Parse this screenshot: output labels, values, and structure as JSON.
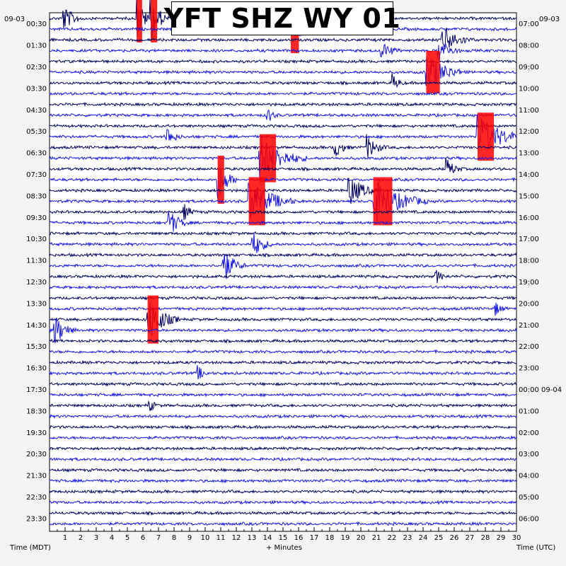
{
  "chart_data": {
    "type": "helicorder",
    "title": "YFT SHZ WY 01",
    "date_left": "09-03",
    "date_right": "09-03",
    "left_labels": [
      "00:30",
      "01:30",
      "02:30",
      "03:30",
      "04:30",
      "05:30",
      "06:30",
      "07:30",
      "08:30",
      "09:30",
      "10:30",
      "11:30",
      "12:30",
      "13:30",
      "14:30",
      "15:30",
      "16:30",
      "17:30",
      "18:30",
      "19:30",
      "20:30",
      "21:30",
      "22:30",
      "23:30"
    ],
    "right_labels": [
      "07:00",
      "08:00",
      "09:00",
      "10:00",
      "11:00",
      "12:00",
      "13:00",
      "14:00",
      "15:00",
      "16:00",
      "17:00",
      "18:00",
      "19:00",
      "20:00",
      "21:00",
      "22:00",
      "23:00",
      "00:00 09-04",
      "01:00",
      "02:00",
      "03:00",
      "04:00",
      "05:00",
      "06:00"
    ],
    "x_ticks": [
      "1",
      "2",
      "3",
      "4",
      "5",
      "6",
      "7",
      "8",
      "9",
      "10",
      "11",
      "12",
      "13",
      "14",
      "15",
      "16",
      "17",
      "18",
      "19",
      "20",
      "21",
      "22",
      "23",
      "24",
      "25",
      "26",
      "27",
      "28",
      "29",
      "30"
    ],
    "x_range": [
      0,
      30
    ],
    "x_label": "+ Minutes",
    "left_axis_label": "Time (MDT)",
    "right_axis_label": "Time (UTC)",
    "trace_count": 48,
    "trace_minutes": 30,
    "trace_colors": [
      "#000060",
      "#1414e0"
    ],
    "clip_color": "#ff0000",
    "events": [
      {
        "trace": 0,
        "minute": 0.8,
        "amp": 22,
        "dur": 1.5
      },
      {
        "trace": 0,
        "minute": 5.6,
        "amp": 34,
        "dur": 1.0,
        "clip": true
      },
      {
        "trace": 0,
        "minute": 6.5,
        "amp": 34,
        "dur": 1.2,
        "clip": true
      },
      {
        "trace": 1,
        "minute": 11.6,
        "amp": 18,
        "dur": 1.5
      },
      {
        "trace": 1,
        "minute": 15.5,
        "amp": 34,
        "dur": 1.5,
        "clip": true
      },
      {
        "trace": 2,
        "minute": 25.2,
        "amp": 24,
        "dur": 2.0
      },
      {
        "trace": 3,
        "minute": 21.3,
        "amp": 14,
        "dur": 1.5
      },
      {
        "trace": 3,
        "minute": 25.0,
        "amp": 20,
        "dur": 1.5
      },
      {
        "trace": 5,
        "minute": 24.2,
        "amp": 30,
        "dur": 2.5,
        "clip": true
      },
      {
        "trace": 6,
        "minute": 22.0,
        "amp": 14,
        "dur": 1.0
      },
      {
        "trace": 9,
        "minute": 14.0,
        "amp": 12,
        "dur": 1.0
      },
      {
        "trace": 11,
        "minute": 7.5,
        "amp": 16,
        "dur": 1.2
      },
      {
        "trace": 11,
        "minute": 27.5,
        "amp": 34,
        "dur": 3.0,
        "clip": true
      },
      {
        "trace": 12,
        "minute": 18.3,
        "amp": 16,
        "dur": 1.2
      },
      {
        "trace": 12,
        "minute": 20.4,
        "amp": 18,
        "dur": 1.5
      },
      {
        "trace": 13,
        "minute": 13.5,
        "amp": 34,
        "dur": 3.0,
        "clip": true
      },
      {
        "trace": 14,
        "minute": 25.5,
        "amp": 16,
        "dur": 1.2
      },
      {
        "trace": 15,
        "minute": 10.8,
        "amp": 34,
        "dur": 1.2,
        "clip": true
      },
      {
        "trace": 16,
        "minute": 19.2,
        "amp": 24,
        "dur": 2.0
      },
      {
        "trace": 17,
        "minute": 12.8,
        "amp": 34,
        "dur": 3.0,
        "clip": true
      },
      {
        "trace": 17,
        "minute": 20.8,
        "amp": 34,
        "dur": 3.5,
        "clip": true
      },
      {
        "trace": 18,
        "minute": 8.6,
        "amp": 14,
        "dur": 1.0
      },
      {
        "trace": 19,
        "minute": 7.6,
        "amp": 22,
        "dur": 1.5
      },
      {
        "trace": 21,
        "minute": 13.0,
        "amp": 22,
        "dur": 1.5
      },
      {
        "trace": 23,
        "minute": 11.1,
        "amp": 28,
        "dur": 1.5
      },
      {
        "trace": 24,
        "minute": 24.8,
        "amp": 12,
        "dur": 1.0
      },
      {
        "trace": 27,
        "minute": 28.6,
        "amp": 12,
        "dur": 1.0
      },
      {
        "trace": 28,
        "minute": 6.3,
        "amp": 34,
        "dur": 2.0,
        "clip": true
      },
      {
        "trace": 29,
        "minute": 0.3,
        "amp": 24,
        "dur": 1.5
      },
      {
        "trace": 33,
        "minute": 9.5,
        "amp": 12,
        "dur": 1.0
      },
      {
        "trace": 36,
        "minute": 6.4,
        "amp": 10,
        "dur": 1.0
      }
    ]
  }
}
